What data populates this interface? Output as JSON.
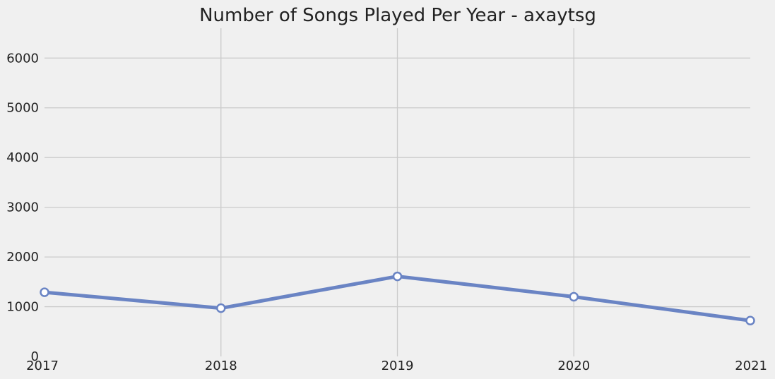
{
  "chart_data": {
    "type": "line",
    "title": "Number of Songs Played Per Year - axaytsg",
    "xlabel": "",
    "ylabel": "",
    "x": [
      "2017",
      "2018",
      "2019",
      "2020",
      "2021"
    ],
    "series": [
      {
        "values": [
          1290,
          970,
          1610,
          1200,
          720
        ],
        "color": "#6a84c4"
      }
    ],
    "ylim": [
      0,
      6600
    ],
    "yticks": [
      0,
      1000,
      2000,
      3000,
      4000,
      5000,
      6000
    ],
    "grid": true,
    "legend": "none",
    "background": "#f0f0f0",
    "grid_color": "#cbcbcb"
  }
}
